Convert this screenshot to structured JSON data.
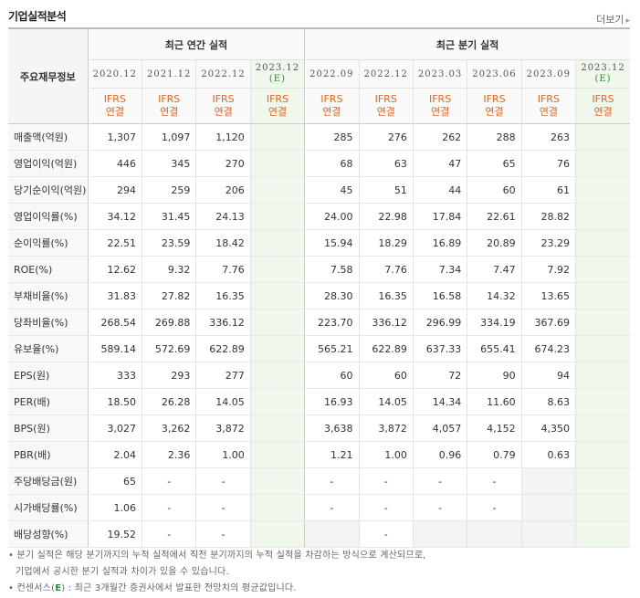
{
  "title": "기업실적분석",
  "more_label": "더보기",
  "header": {
    "row_label": "주요재무정보",
    "annual_label": "최근 연간 실적",
    "quarter_label": "최근 분기 실적",
    "annual_periods": [
      "2020.12",
      "2021.12",
      "2022.12"
    ],
    "annual_est_period": "2023.12",
    "quarter_periods": [
      "2022.09",
      "2022.12",
      "2023.03",
      "2023.06",
      "2023.09"
    ],
    "quarter_est_period": "2023.12",
    "est_mark": "(E)",
    "std_line1": "IFRS",
    "std_line2": "연결"
  },
  "rows": [
    {
      "label": "매출액(억원)",
      "a": [
        "1,307",
        "1,097",
        "1,120"
      ],
      "q": [
        "285",
        "276",
        "262",
        "288",
        "263"
      ]
    },
    {
      "label": "영업이익(억원)",
      "a": [
        "446",
        "345",
        "270"
      ],
      "q": [
        "68",
        "63",
        "47",
        "65",
        "76"
      ]
    },
    {
      "label": "당기순이익(억원)",
      "a": [
        "294",
        "259",
        "206"
      ],
      "q": [
        "45",
        "51",
        "44",
        "60",
        "61"
      ]
    },
    {
      "label": "영업이익률(%)",
      "a": [
        "34.12",
        "31.45",
        "24.13"
      ],
      "q": [
        "24.00",
        "22.98",
        "17.84",
        "22.61",
        "28.82"
      ]
    },
    {
      "label": "순이익률(%)",
      "a": [
        "22.51",
        "23.59",
        "18.42"
      ],
      "q": [
        "15.94",
        "18.29",
        "16.89",
        "20.89",
        "23.29"
      ]
    },
    {
      "label": "ROE(%)",
      "a": [
        "12.62",
        "9.32",
        "7.76"
      ],
      "q": [
        "7.58",
        "7.76",
        "7.34",
        "7.47",
        "7.92"
      ]
    },
    {
      "label": "부채비율(%)",
      "a": [
        "31.83",
        "27.82",
        "16.35"
      ],
      "q": [
        "28.30",
        "16.35",
        "16.58",
        "14.32",
        "13.65"
      ]
    },
    {
      "label": "당좌비율(%)",
      "a": [
        "268.54",
        "269.88",
        "336.12"
      ],
      "q": [
        "223.70",
        "336.12",
        "296.99",
        "334.19",
        "367.69"
      ]
    },
    {
      "label": "유보율(%)",
      "a": [
        "589.14",
        "572.69",
        "622.89"
      ],
      "q": [
        "565.21",
        "622.89",
        "637.33",
        "655.41",
        "674.23"
      ]
    },
    {
      "label": "EPS(원)",
      "a": [
        "333",
        "293",
        "277"
      ],
      "q": [
        "60",
        "60",
        "72",
        "90",
        "94"
      ]
    },
    {
      "label": "PER(배)",
      "a": [
        "18.50",
        "26.28",
        "14.05"
      ],
      "q": [
        "16.93",
        "14.05",
        "14.34",
        "11.60",
        "8.63"
      ]
    },
    {
      "label": "BPS(원)",
      "a": [
        "3,027",
        "3,262",
        "3,872"
      ],
      "q": [
        "3,638",
        "3,872",
        "4,057",
        "4,152",
        "4,350"
      ]
    },
    {
      "label": "PBR(배)",
      "a": [
        "2.04",
        "2.36",
        "1.00"
      ],
      "q": [
        "1.21",
        "1.00",
        "0.96",
        "0.79",
        "0.63"
      ]
    },
    {
      "label": "주당배당금(원)",
      "a": [
        "65",
        "-",
        "-"
      ],
      "q": [
        "-",
        "-",
        "-",
        "-",
        ""
      ]
    },
    {
      "label": "시가배당률(%)",
      "a": [
        "1.06",
        "-",
        "-"
      ],
      "q": [
        "-",
        "-",
        "-",
        "-",
        ""
      ]
    },
    {
      "label": "배당성향(%)",
      "a": [
        "19.52",
        "-",
        "-"
      ],
      "q": [
        "",
        "-",
        "",
        "",
        ""
      ]
    }
  ],
  "footnotes": {
    "line1": "• 분기 실적은 해당 분기까지의 누적 실적에서 직전 분기까지의 누적 실적을 차감하는 방식으로 계산되므로,",
    "line2": "기업에서 공시한 분기 실적과 차이가 있을 수 있습니다.",
    "line3_pre": "• 컨센서스(",
    "line3_e": "E",
    "line3_post": ") : 최근 3개월간 증권사에서 발표한 전망치의 평균값입니다."
  }
}
